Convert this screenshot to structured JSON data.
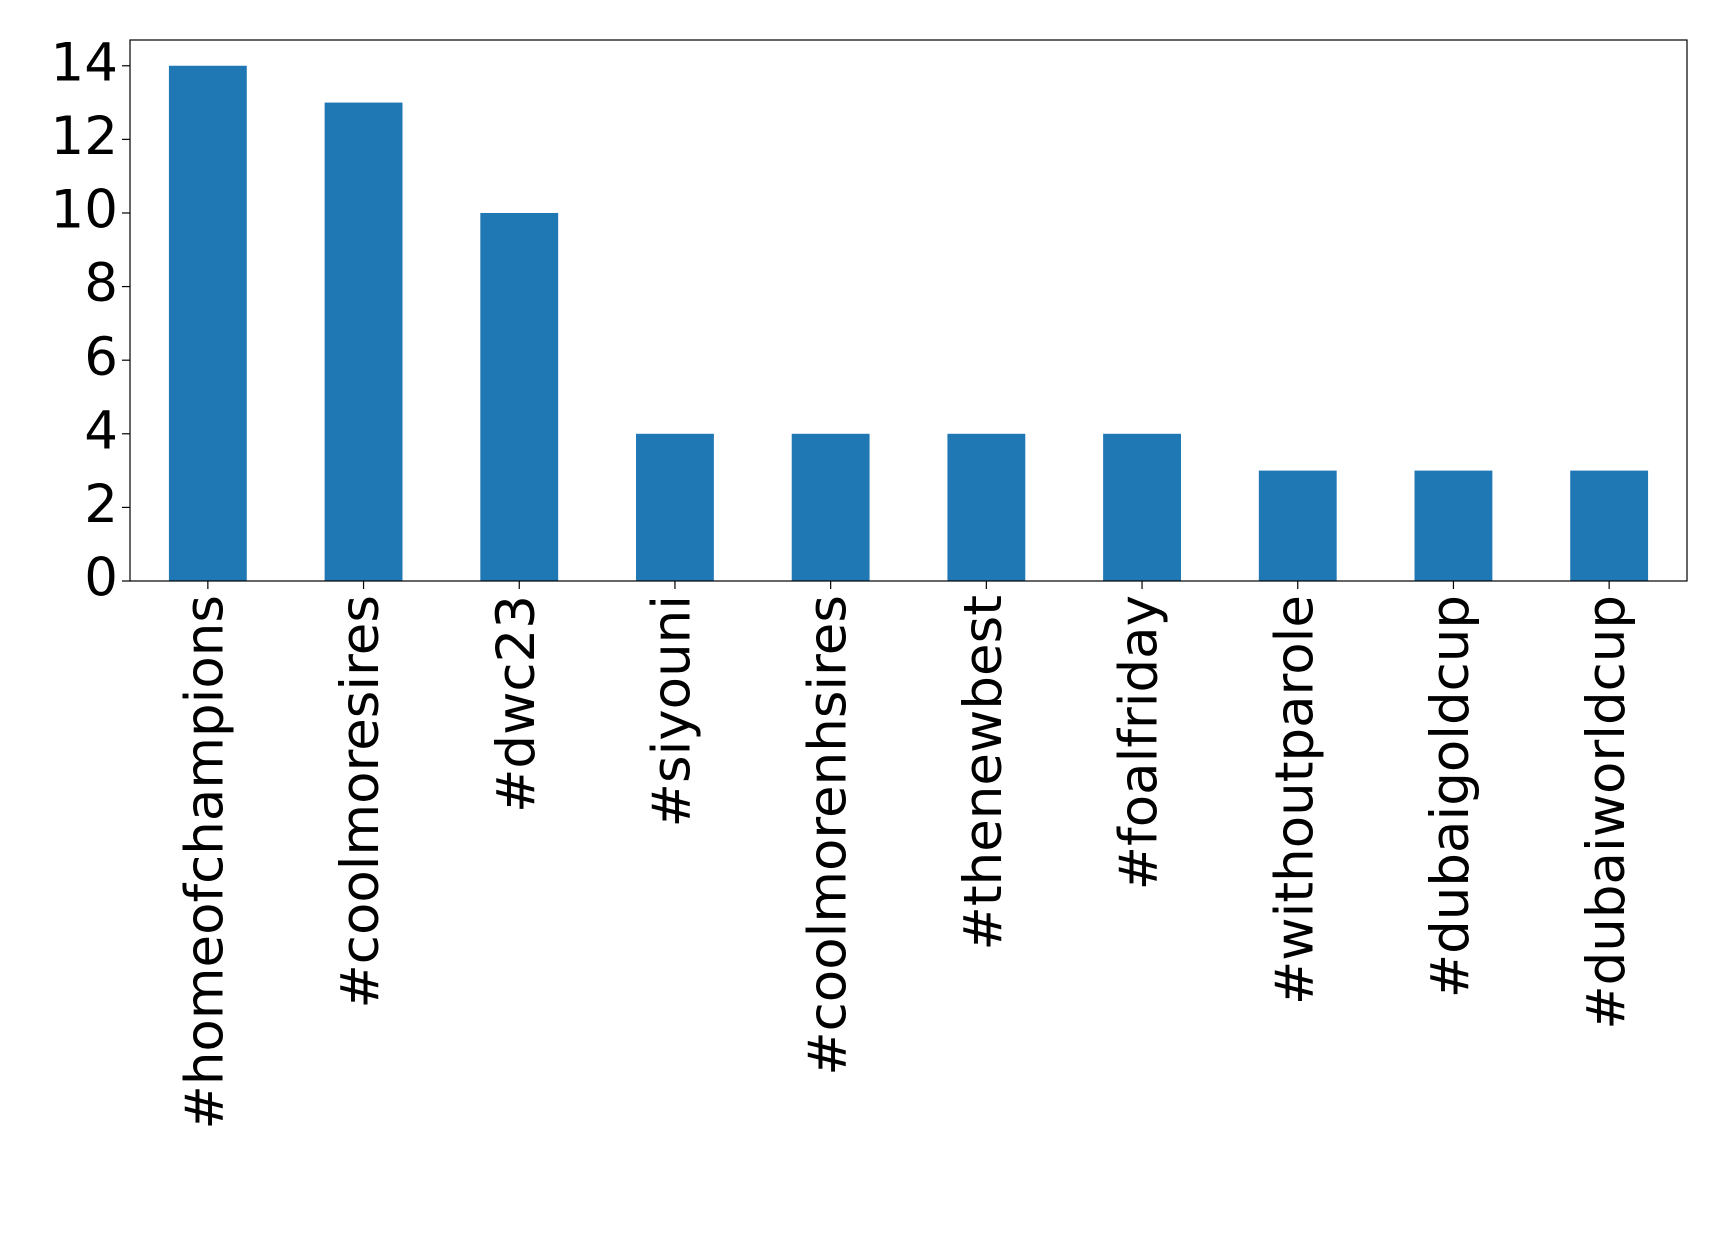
{
  "chart_data": {
    "type": "bar",
    "categories": [
      "#homeofchampions",
      "#coolmoresires",
      "#dwc23",
      "#siyouni",
      "#coolmorenhsires",
      "#thenewbest",
      "#foalfriday",
      "#withoutparole",
      "#dubaigoldcup",
      "#dubaiworldcup"
    ],
    "values": [
      14,
      13,
      10,
      4,
      4,
      4,
      4,
      3,
      3,
      3
    ],
    "color": "#1f77b4",
    "ylim": [
      0,
      14.7
    ],
    "yticks": [
      0,
      2,
      4,
      6,
      8,
      10,
      12,
      14
    ],
    "grid": false
  }
}
